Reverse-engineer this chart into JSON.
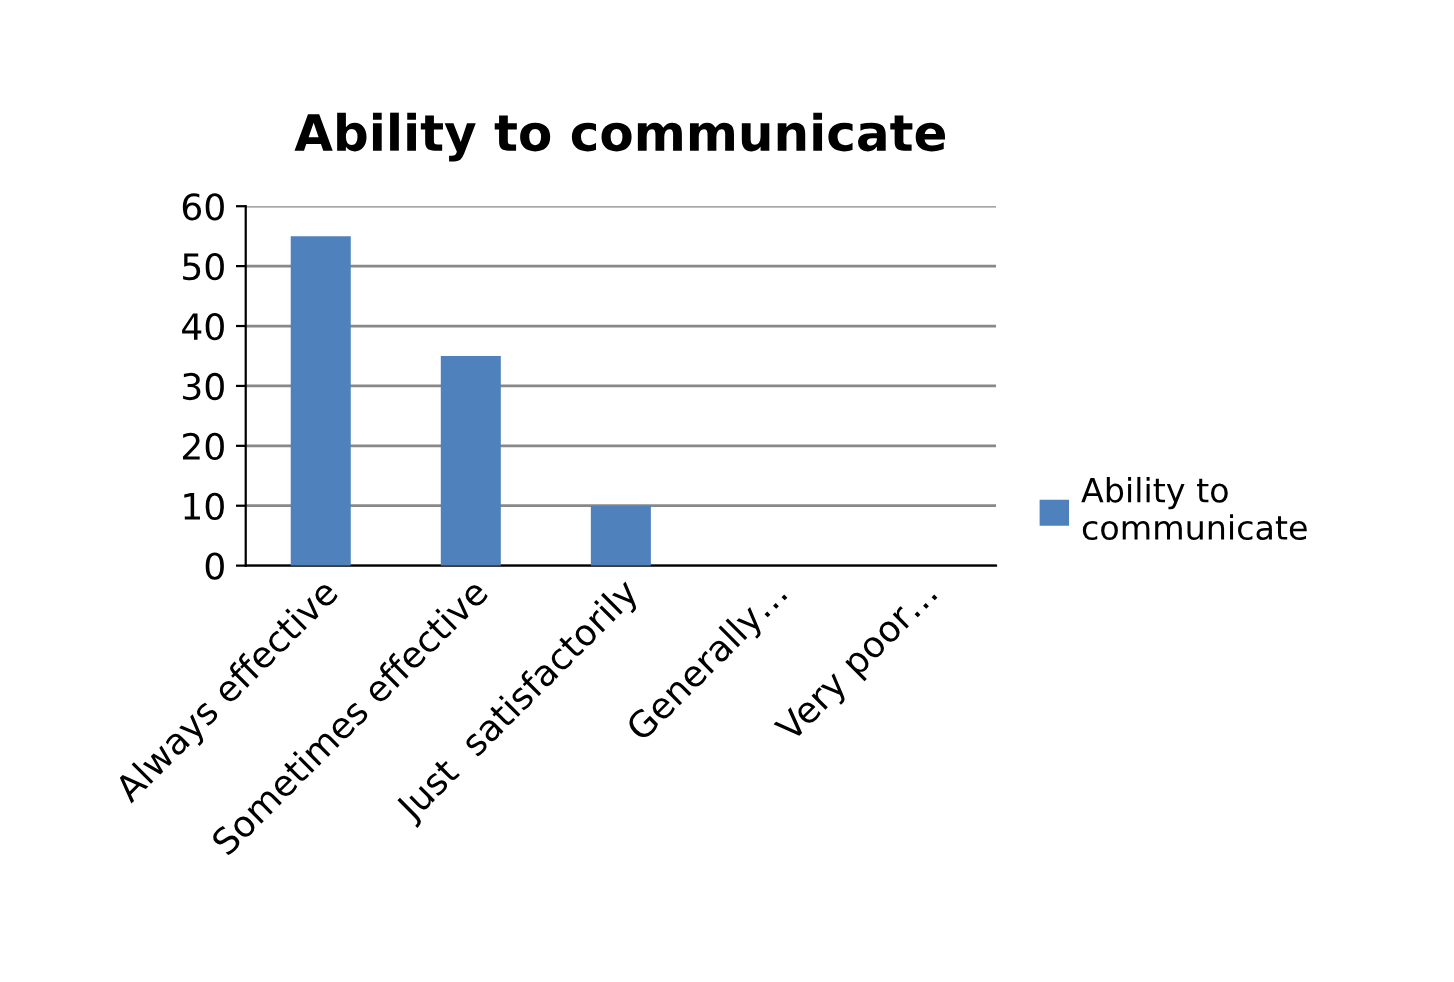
{
  "chart_data": {
    "type": "bar",
    "title": "Ability to communicate",
    "categories": [
      "Always effective",
      "Sometimes effective",
      "Just  satisfactorily",
      "Generally…",
      "Very poor…"
    ],
    "series": [
      {
        "name": "Ability to communicate",
        "color": "#4f81bd",
        "values": [
          55,
          35,
          10,
          0,
          0
        ]
      }
    ],
    "ylim": [
      0,
      60
    ],
    "yticks": [
      0,
      10,
      20,
      30,
      40,
      50,
      60
    ],
    "grid": "y",
    "legend": "right"
  }
}
